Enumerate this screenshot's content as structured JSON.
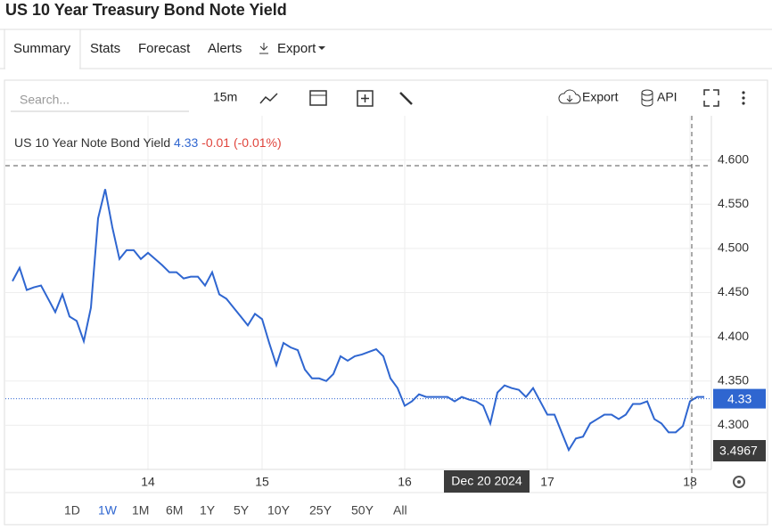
{
  "header": {
    "title": "US 10 Year Treasury Bond Note Yield"
  },
  "tabs": [
    "Summary",
    "Stats",
    "Forecast",
    "Alerts",
    "Export"
  ],
  "toolbar": {
    "search_placeholder": "Search...",
    "interval": "15m",
    "export": "Export",
    "api": "API"
  },
  "ranges": [
    "1D",
    "1W",
    "1M",
    "6M",
    "1Y",
    "5Y",
    "10Y",
    "25Y",
    "50Y",
    "All"
  ],
  "chart_data": {
    "type": "line",
    "series": [
      {
        "name": "US 10 Year Note Bond Yield",
        "color": "#2f66d0",
        "values": [
          4.463,
          4.478,
          4.453,
          4.456,
          4.458,
          4.443,
          4.428,
          4.448,
          4.423,
          4.418,
          4.395,
          4.433,
          4.534,
          4.567,
          4.524,
          4.488,
          4.498,
          4.498,
          4.488,
          4.495,
          4.488,
          4.481,
          4.473,
          4.473,
          4.466,
          4.468,
          4.468,
          4.458,
          4.473,
          4.448,
          4.443,
          4.433,
          4.423,
          4.413,
          4.426,
          4.42,
          4.393,
          4.368,
          4.393,
          4.388,
          4.385,
          4.363,
          4.353,
          4.353,
          4.35,
          4.358,
          4.378,
          4.373,
          4.378,
          4.38,
          4.383,
          4.386,
          4.378,
          4.353,
          4.342,
          4.322,
          4.327,
          4.335,
          4.332,
          4.332,
          4.332,
          4.332,
          4.327,
          4.332,
          4.329,
          4.327,
          4.322,
          4.302,
          4.337,
          4.345,
          4.342,
          4.34,
          4.332,
          4.342,
          4.327,
          4.312,
          4.312,
          4.292,
          4.272,
          4.285,
          4.287,
          4.302,
          4.307,
          4.312,
          4.312,
          4.307,
          4.312,
          4.324,
          4.324,
          4.327,
          4.307,
          4.302,
          4.292,
          4.292,
          4.299,
          4.327,
          4.332,
          4.332
        ]
      }
    ],
    "categories": [
      null,
      null,
      null,
      null,
      null,
      null,
      null,
      null,
      null,
      null,
      null,
      null,
      null,
      null,
      null,
      null,
      null,
      null,
      null,
      "14",
      null,
      null,
      null,
      null,
      null,
      null,
      null,
      null,
      null,
      null,
      null,
      null,
      null,
      null,
      null,
      "15",
      null,
      null,
      null,
      null,
      null,
      null,
      null,
      null,
      null,
      null,
      null,
      null,
      null,
      null,
      null,
      null,
      null,
      null,
      null,
      "16",
      null,
      null,
      null,
      null,
      null,
      null,
      null,
      null,
      null,
      null,
      null,
      null,
      null,
      null,
      null,
      null,
      null,
      null,
      null,
      "17",
      null,
      null,
      null,
      null,
      null,
      null,
      null,
      null,
      null,
      null,
      null,
      null,
      null,
      null,
      null,
      null,
      null,
      null,
      null,
      "18",
      null,
      null
    ],
    "last_value": 4.33,
    "change": "-0.01 (-0.01%)",
    "crosshair_date": "Dec 20 2024",
    "crosshair_value": "3.4967",
    "ylim": [
      4.25,
      4.65
    ],
    "yticks": [
      {
        "value": 4.3,
        "label": "4.300"
      },
      {
        "value": 4.35,
        "label": "4.350"
      },
      {
        "value": 4.4,
        "label": "4.400"
      },
      {
        "value": 4.45,
        "label": "4.450"
      },
      {
        "value": 4.5,
        "label": "4.500"
      },
      {
        "value": 4.55,
        "label": "4.550"
      },
      {
        "value": 4.6,
        "label": "4.600"
      }
    ],
    "grid": true
  }
}
